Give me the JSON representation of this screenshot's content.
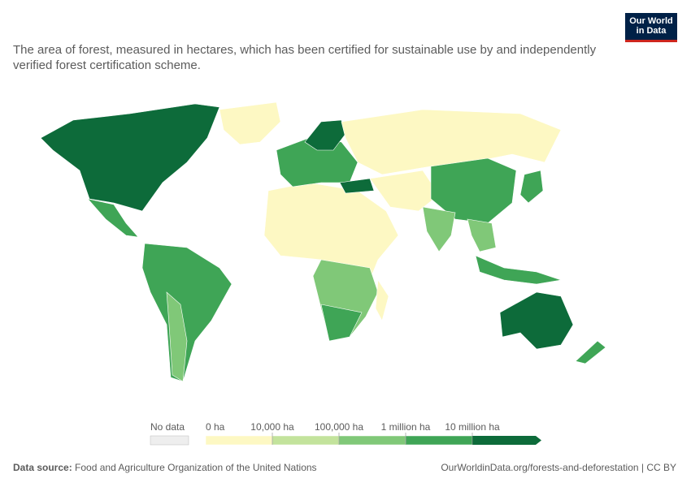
{
  "header": {
    "title": "The area of forest, measured in hectares, which has been certified for sustainable use by and independently verified forest certification scheme.",
    "logo": [
      "Our World",
      "in Data"
    ]
  },
  "legend": {
    "no_data": "No data",
    "labels": [
      "0 ha",
      "10,000 ha",
      "100,000 ha",
      "1 million ha",
      "10 million ha"
    ],
    "colors": [
      "#fdf8c3",
      "#c3e39c",
      "#80c878",
      "#3fa556",
      "#0d6b3a"
    ]
  },
  "footer": {
    "source_label": "Data source:",
    "source": "Food and Agriculture Organization of the United Nations",
    "url": "OurWorldinData.org/forests-and-deforestation | CC BY"
  }
}
